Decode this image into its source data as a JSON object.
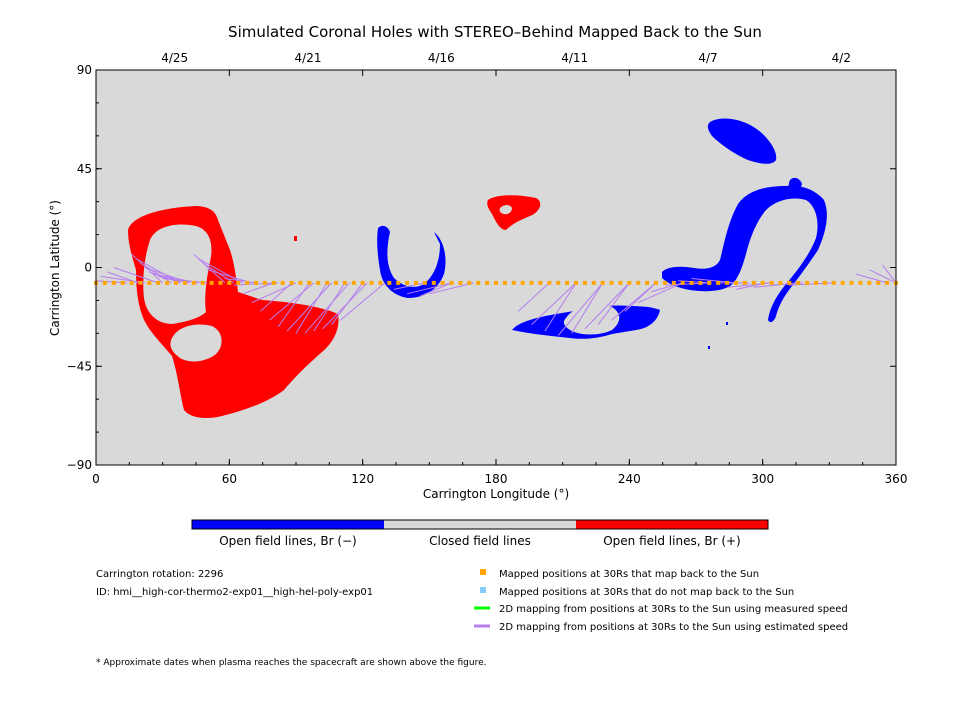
{
  "chart_data": {
    "type": "scatter",
    "title": "Simulated Coronal Holes with STEREO–Behind Mapped Back to the Sun",
    "xlabel": "Carrington Longitude (°)",
    "ylabel": "Carrington Latitude (°)",
    "xlim": [
      0,
      360
    ],
    "ylim": [
      -90,
      90
    ],
    "x_ticks": [
      "0",
      "60",
      "120",
      "180",
      "240",
      "300",
      "360"
    ],
    "y_ticks": [
      "90",
      "45",
      "0",
      "−45",
      "−90"
    ],
    "top_axis": {
      "dates": [
        {
          "label": "4/25",
          "x": 30
        },
        {
          "label": "4/21",
          "x": 90
        },
        {
          "label": "4/16",
          "x": 150
        },
        {
          "label": "4/11",
          "x": 210
        },
        {
          "label": "4/7",
          "x": 270
        },
        {
          "label": "4/2",
          "x": 330
        }
      ]
    },
    "background_color": "#d9d9d9",
    "colors": {
      "open_negative": "#0000ff",
      "closed": "#d9d9d9",
      "open_positive": "#ff0000",
      "mapped_back": "#ffa500",
      "not_mapped": "#87cefa",
      "measured_speed": "#00ff00",
      "estimated_speed": "#b57ef0"
    },
    "colorbar_labels": [
      "Open field lines, Br (−)",
      "Closed field lines",
      "Open field lines, Br (+)"
    ],
    "mapped_latitude": -7,
    "mapped_points_lon": [
      0,
      4,
      8,
      12,
      16,
      20,
      24,
      28,
      32,
      36,
      40,
      44,
      48,
      52,
      56,
      60,
      64,
      68,
      72,
      76,
      80,
      84,
      88,
      92,
      96,
      100,
      104,
      108,
      112,
      116,
      120,
      124,
      128,
      132,
      136,
      140,
      144,
      148,
      152,
      156,
      160,
      164,
      168,
      172,
      176,
      180,
      184,
      188,
      192,
      196,
      200,
      204,
      208,
      212,
      216,
      220,
      224,
      228,
      232,
      236,
      240,
      244,
      248,
      252,
      256,
      260,
      264,
      268,
      272,
      276,
      280,
      284,
      288,
      292,
      296,
      300,
      304,
      308,
      312,
      316,
      320,
      324,
      328,
      332,
      336,
      340,
      344,
      348,
      352,
      356,
      360
    ],
    "field_line_targets": [
      {
        "lon": 0,
        "lat": -6
      },
      {
        "lon": 2,
        "lat": -4
      },
      {
        "lon": 5,
        "lat": -2
      },
      {
        "lon": 8,
        "lat": 0
      },
      {
        "lon": 16,
        "lat": 6
      },
      {
        "lon": 18,
        "lat": 4
      },
      {
        "lon": 20,
        "lat": 2
      },
      {
        "lon": 22,
        "lat": 0
      },
      {
        "lon": 24,
        "lat": -2
      },
      {
        "lon": 26,
        "lat": -3
      },
      {
        "lon": 28,
        "lat": -4
      },
      {
        "lon": 30,
        "lat": -5
      },
      {
        "lon": 44,
        "lat": 6
      },
      {
        "lon": 46,
        "lat": 4
      },
      {
        "lon": 48,
        "lat": 2
      },
      {
        "lon": 50,
        "lat": -1
      },
      {
        "lon": 58,
        "lat": -5
      },
      {
        "lon": 62,
        "lat": -8
      },
      {
        "lon": 66,
        "lat": -12
      },
      {
        "lon": 70,
        "lat": -16
      },
      {
        "lon": 74,
        "lat": -20
      },
      {
        "lon": 78,
        "lat": -24
      },
      {
        "lon": 82,
        "lat": -27
      },
      {
        "lon": 86,
        "lat": -29
      },
      {
        "lon": 90,
        "lat": -30
      },
      {
        "lon": 94,
        "lat": -30
      },
      {
        "lon": 98,
        "lat": -29
      },
      {
        "lon": 102,
        "lat": -28
      },
      {
        "lon": 106,
        "lat": -26
      },
      {
        "lon": 110,
        "lat": -24
      },
      {
        "lon": 134,
        "lat": -10
      },
      {
        "lon": 140,
        "lat": -12
      },
      {
        "lon": 146,
        "lat": -13
      },
      {
        "lon": 150,
        "lat": -12
      },
      {
        "lon": 190,
        "lat": -20
      },
      {
        "lon": 196,
        "lat": -26
      },
      {
        "lon": 202,
        "lat": -29
      },
      {
        "lon": 208,
        "lat": -31
      },
      {
        "lon": 214,
        "lat": -30
      },
      {
        "lon": 220,
        "lat": -28
      },
      {
        "lon": 226,
        "lat": -26
      },
      {
        "lon": 232,
        "lat": -24
      },
      {
        "lon": 238,
        "lat": -20
      },
      {
        "lon": 244,
        "lat": -16
      },
      {
        "lon": 250,
        "lat": -11
      },
      {
        "lon": 256,
        "lat": -8
      },
      {
        "lon": 262,
        "lat": -6
      },
      {
        "lon": 268,
        "lat": -5
      },
      {
        "lon": 280,
        "lat": -7
      },
      {
        "lon": 284,
        "lat": -9
      },
      {
        "lon": 288,
        "lat": -10
      },
      {
        "lon": 296,
        "lat": -9
      },
      {
        "lon": 304,
        "lat": -8
      },
      {
        "lon": 312,
        "lat": -8
      },
      {
        "lon": 342,
        "lat": -3
      },
      {
        "lon": 348,
        "lat": -1
      },
      {
        "lon": 354,
        "lat": 1
      },
      {
        "lon": 360,
        "lat": 0
      }
    ],
    "field_line_speed": "estimated"
  },
  "info": {
    "rotation": "Carrington rotation: 2296",
    "id": "ID: hmi__high-cor-thermo2-exp01__high-hel-poly-exp01"
  },
  "legend": [
    {
      "label": "Mapped positions at 30Rs that map back to the Sun",
      "marker": "square",
      "color": "#ffa500"
    },
    {
      "label": "Mapped positions at 30Rs that do not map back to the Sun",
      "marker": "square",
      "color": "#87cefa"
    },
    {
      "label": "2D mapping from positions at 30Rs to the Sun using measured speed",
      "marker": "line",
      "color": "#00ff00"
    },
    {
      "label": "2D mapping from positions at 30Rs to the Sun using estimated speed",
      "marker": "line",
      "color": "#b57ef0"
    }
  ],
  "footnote": "* Approximate dates when plasma reaches the spacecraft are shown above the figure."
}
